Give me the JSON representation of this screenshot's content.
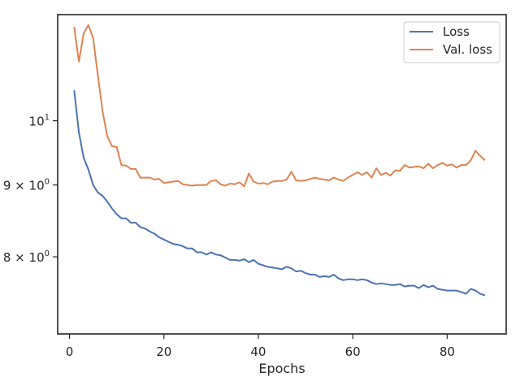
{
  "chart_data": {
    "type": "line",
    "title": "",
    "xlabel": "Epochs",
    "ylabel": "",
    "yscale": "log",
    "xlim": [
      -2.5,
      92.5
    ],
    "ylim": [
      7.05,
      11.9
    ],
    "grid": false,
    "legend_position": "top-right",
    "x_ticks": [
      0,
      20,
      40,
      60,
      80
    ],
    "x_tick_labels": [
      "0",
      "20",
      "40",
      "60",
      "80"
    ],
    "y_ticks": [
      8,
      9,
      10
    ],
    "y_tick_labels": [
      {
        "base": "8 × 10",
        "exp": "0"
      },
      {
        "base": "9 × 10",
        "exp": "0"
      },
      {
        "base": "10",
        "exp": "1"
      }
    ],
    "x": [
      1,
      2,
      3,
      4,
      5,
      6,
      7,
      8,
      9,
      10,
      11,
      12,
      13,
      14,
      15,
      16,
      17,
      18,
      19,
      20,
      21,
      22,
      23,
      24,
      25,
      26,
      27,
      28,
      29,
      30,
      31,
      32,
      33,
      34,
      35,
      36,
      37,
      38,
      39,
      40,
      41,
      42,
      43,
      44,
      45,
      46,
      47,
      48,
      49,
      50,
      51,
      52,
      53,
      54,
      55,
      56,
      57,
      58,
      59,
      60,
      61,
      62,
      63,
      64,
      65,
      66,
      67,
      68,
      69,
      70,
      71,
      72,
      73,
      74,
      75,
      76,
      77,
      78,
      79,
      80,
      81,
      82,
      83,
      84,
      85,
      86,
      87,
      88
    ],
    "series": [
      {
        "name": "Loss",
        "color": "#4c72b0",
        "values": [
          10.51,
          9.81,
          9.41,
          9.23,
          9.0,
          8.89,
          8.84,
          8.76,
          8.66,
          8.58,
          8.52,
          8.52,
          8.46,
          8.46,
          8.4,
          8.38,
          8.34,
          8.31,
          8.26,
          8.23,
          8.2,
          8.17,
          8.16,
          8.14,
          8.11,
          8.11,
          8.06,
          8.06,
          8.03,
          8.06,
          8.03,
          8.02,
          7.99,
          7.96,
          7.96,
          7.95,
          7.97,
          7.93,
          7.96,
          7.91,
          7.89,
          7.87,
          7.86,
          7.85,
          7.84,
          7.87,
          7.85,
          7.81,
          7.82,
          7.79,
          7.77,
          7.77,
          7.74,
          7.75,
          7.74,
          7.77,
          7.72,
          7.7,
          7.71,
          7.71,
          7.7,
          7.71,
          7.7,
          7.67,
          7.65,
          7.66,
          7.65,
          7.64,
          7.64,
          7.65,
          7.62,
          7.63,
          7.63,
          7.6,
          7.64,
          7.61,
          7.63,
          7.59,
          7.58,
          7.57,
          7.57,
          7.57,
          7.55,
          7.53,
          7.59,
          7.57,
          7.53,
          7.51
        ]
      },
      {
        "name": "Val. loss",
        "color": "#dd8452",
        "values": [
          11.66,
          11.02,
          11.54,
          11.7,
          11.45,
          10.78,
          10.16,
          9.75,
          9.59,
          9.58,
          9.3,
          9.29,
          9.24,
          9.24,
          9.11,
          9.11,
          9.11,
          9.08,
          9.09,
          9.03,
          9.04,
          9.05,
          9.06,
          9.01,
          9.0,
          8.99,
          9.0,
          9.0,
          9.0,
          9.06,
          9.07,
          9.01,
          8.99,
          9.02,
          9.01,
          9.04,
          8.98,
          9.17,
          9.05,
          9.02,
          9.03,
          9.01,
          9.05,
          9.06,
          9.06,
          9.08,
          9.2,
          9.07,
          9.06,
          9.07,
          9.09,
          9.11,
          9.09,
          9.08,
          9.07,
          9.11,
          9.08,
          9.06,
          9.11,
          9.15,
          9.19,
          9.15,
          9.19,
          9.11,
          9.25,
          9.15,
          9.18,
          9.14,
          9.22,
          9.21,
          9.3,
          9.26,
          9.27,
          9.28,
          9.25,
          9.32,
          9.25,
          9.3,
          9.33,
          9.29,
          9.31,
          9.26,
          9.3,
          9.3,
          9.37,
          9.52,
          9.44,
          9.37
        ]
      }
    ]
  }
}
